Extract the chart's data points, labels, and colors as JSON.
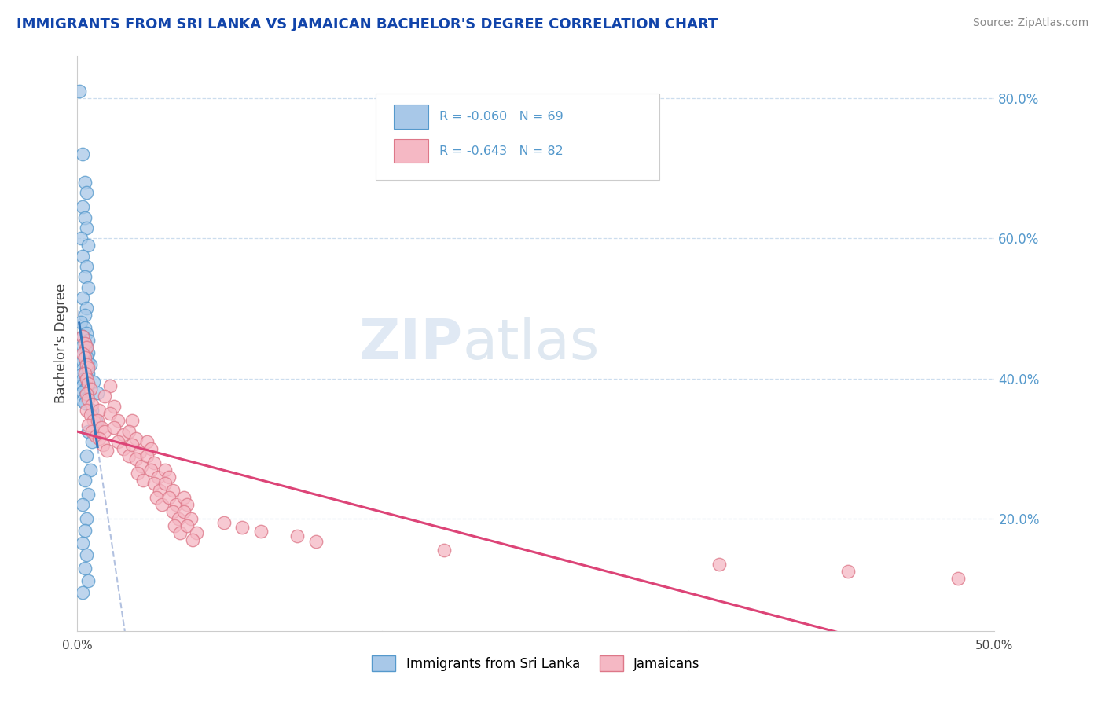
{
  "title": "IMMIGRANTS FROM SRI LANKA VS JAMAICAN BACHELOR'S DEGREE CORRELATION CHART",
  "source_text": "Source: ZipAtlas.com",
  "ylabel": "Bachelor's Degree",
  "watermark_zip": "ZIP",
  "watermark_atlas": "atlas",
  "xlim": [
    0.0,
    0.5
  ],
  "ylim": [
    0.04,
    0.86
  ],
  "yticks": [
    0.2,
    0.4,
    0.6,
    0.8
  ],
  "ytick_labels": [
    "20.0%",
    "40.0%",
    "60.0%",
    "80.0%"
  ],
  "xtick_left_label": "0.0%",
  "xtick_right_label": "50.0%",
  "color_blue_fill": "#a8c8e8",
  "color_blue_edge": "#5599cc",
  "color_pink_fill": "#f5b8c4",
  "color_pink_edge": "#dd7788",
  "color_blue_line": "#3377bb",
  "color_pink_line": "#dd4477",
  "color_dashed": "#aabbdd",
  "color_tick_label": "#5599cc",
  "color_grid": "#ccddee",
  "title_color": "#1144aa",
  "source_color": "#888888",
  "legend_r1": "R = -0.060",
  "legend_n1": "N = 69",
  "legend_r2": "R = -0.643",
  "legend_n2": "N = 82",
  "blue_points": [
    [
      0.001,
      0.81
    ],
    [
      0.003,
      0.72
    ],
    [
      0.004,
      0.68
    ],
    [
      0.005,
      0.665
    ],
    [
      0.003,
      0.645
    ],
    [
      0.004,
      0.63
    ],
    [
      0.005,
      0.615
    ],
    [
      0.002,
      0.6
    ],
    [
      0.006,
      0.59
    ],
    [
      0.003,
      0.575
    ],
    [
      0.005,
      0.56
    ],
    [
      0.004,
      0.545
    ],
    [
      0.006,
      0.53
    ],
    [
      0.003,
      0.515
    ],
    [
      0.005,
      0.5
    ],
    [
      0.004,
      0.49
    ],
    [
      0.002,
      0.48
    ],
    [
      0.004,
      0.472
    ],
    [
      0.005,
      0.465
    ],
    [
      0.003,
      0.46
    ],
    [
      0.006,
      0.455
    ],
    [
      0.004,
      0.45
    ],
    [
      0.003,
      0.447
    ],
    [
      0.005,
      0.443
    ],
    [
      0.004,
      0.44
    ],
    [
      0.006,
      0.437
    ],
    [
      0.003,
      0.434
    ],
    [
      0.005,
      0.431
    ],
    [
      0.004,
      0.428
    ],
    [
      0.003,
      0.425
    ],
    [
      0.006,
      0.422
    ],
    [
      0.004,
      0.419
    ],
    [
      0.005,
      0.416
    ],
    [
      0.003,
      0.413
    ],
    [
      0.004,
      0.41
    ],
    [
      0.006,
      0.408
    ],
    [
      0.002,
      0.405
    ],
    [
      0.005,
      0.402
    ],
    [
      0.003,
      0.399
    ],
    [
      0.004,
      0.396
    ],
    [
      0.006,
      0.393
    ],
    [
      0.003,
      0.39
    ],
    [
      0.005,
      0.387
    ],
    [
      0.004,
      0.384
    ],
    [
      0.003,
      0.381
    ],
    [
      0.006,
      0.378
    ],
    [
      0.004,
      0.375
    ],
    [
      0.005,
      0.372
    ],
    [
      0.003,
      0.368
    ],
    [
      0.004,
      0.365
    ],
    [
      0.007,
      0.42
    ],
    [
      0.009,
      0.395
    ],
    [
      0.011,
      0.38
    ],
    [
      0.008,
      0.355
    ],
    [
      0.01,
      0.34
    ],
    [
      0.006,
      0.325
    ],
    [
      0.008,
      0.31
    ],
    [
      0.005,
      0.29
    ],
    [
      0.007,
      0.27
    ],
    [
      0.004,
      0.255
    ],
    [
      0.006,
      0.235
    ],
    [
      0.003,
      0.22
    ],
    [
      0.005,
      0.2
    ],
    [
      0.004,
      0.183
    ],
    [
      0.003,
      0.165
    ],
    [
      0.005,
      0.148
    ],
    [
      0.004,
      0.13
    ],
    [
      0.006,
      0.112
    ],
    [
      0.003,
      0.095
    ]
  ],
  "pink_points": [
    [
      0.003,
      0.46
    ],
    [
      0.004,
      0.45
    ],
    [
      0.005,
      0.445
    ],
    [
      0.003,
      0.435
    ],
    [
      0.004,
      0.43
    ],
    [
      0.005,
      0.42
    ],
    [
      0.006,
      0.415
    ],
    [
      0.004,
      0.408
    ],
    [
      0.005,
      0.4
    ],
    [
      0.006,
      0.393
    ],
    [
      0.007,
      0.385
    ],
    [
      0.005,
      0.378
    ],
    [
      0.006,
      0.37
    ],
    [
      0.008,
      0.363
    ],
    [
      0.005,
      0.355
    ],
    [
      0.007,
      0.348
    ],
    [
      0.009,
      0.34
    ],
    [
      0.006,
      0.333
    ],
    [
      0.008,
      0.325
    ],
    [
      0.01,
      0.318
    ],
    [
      0.012,
      0.355
    ],
    [
      0.011,
      0.34
    ],
    [
      0.013,
      0.33
    ],
    [
      0.015,
      0.325
    ],
    [
      0.012,
      0.315
    ],
    [
      0.014,
      0.305
    ],
    [
      0.016,
      0.298
    ],
    [
      0.018,
      0.39
    ],
    [
      0.015,
      0.375
    ],
    [
      0.02,
      0.36
    ],
    [
      0.018,
      0.35
    ],
    [
      0.022,
      0.34
    ],
    [
      0.02,
      0.33
    ],
    [
      0.025,
      0.32
    ],
    [
      0.022,
      0.31
    ],
    [
      0.025,
      0.3
    ],
    [
      0.028,
      0.29
    ],
    [
      0.03,
      0.34
    ],
    [
      0.028,
      0.325
    ],
    [
      0.032,
      0.315
    ],
    [
      0.03,
      0.305
    ],
    [
      0.034,
      0.295
    ],
    [
      0.032,
      0.285
    ],
    [
      0.035,
      0.275
    ],
    [
      0.033,
      0.265
    ],
    [
      0.036,
      0.255
    ],
    [
      0.038,
      0.31
    ],
    [
      0.04,
      0.3
    ],
    [
      0.038,
      0.29
    ],
    [
      0.042,
      0.28
    ],
    [
      0.04,
      0.27
    ],
    [
      0.044,
      0.26
    ],
    [
      0.042,
      0.25
    ],
    [
      0.045,
      0.24
    ],
    [
      0.043,
      0.23
    ],
    [
      0.046,
      0.22
    ],
    [
      0.048,
      0.27
    ],
    [
      0.05,
      0.26
    ],
    [
      0.048,
      0.25
    ],
    [
      0.052,
      0.24
    ],
    [
      0.05,
      0.23
    ],
    [
      0.054,
      0.22
    ],
    [
      0.052,
      0.21
    ],
    [
      0.055,
      0.2
    ],
    [
      0.053,
      0.19
    ],
    [
      0.056,
      0.18
    ],
    [
      0.058,
      0.23
    ],
    [
      0.06,
      0.22
    ],
    [
      0.058,
      0.21
    ],
    [
      0.062,
      0.2
    ],
    [
      0.06,
      0.19
    ],
    [
      0.065,
      0.18
    ],
    [
      0.063,
      0.17
    ],
    [
      0.08,
      0.195
    ],
    [
      0.09,
      0.188
    ],
    [
      0.1,
      0.182
    ],
    [
      0.12,
      0.175
    ],
    [
      0.13,
      0.168
    ],
    [
      0.2,
      0.155
    ],
    [
      0.35,
      0.135
    ],
    [
      0.42,
      0.125
    ],
    [
      0.48,
      0.115
    ]
  ]
}
